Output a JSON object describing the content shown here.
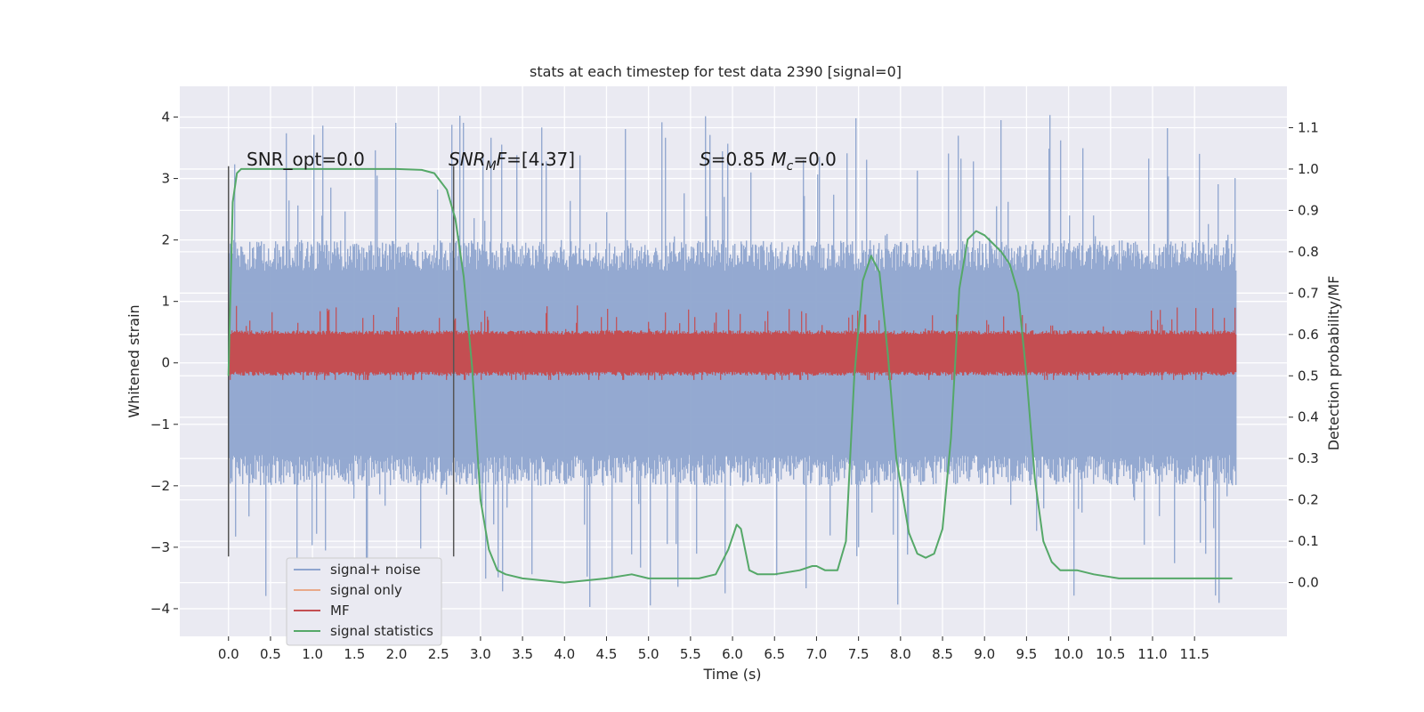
{
  "chart_data": {
    "type": "line",
    "title": "stats at each timestep for test data 2390 [signal=0]",
    "xlabel": "Time (s)",
    "ylabel": "Whitened strain",
    "ylabel_right": "Detection probability/MF",
    "xlim": [
      -0.58,
      12.6
    ],
    "ylim": [
      -4.45,
      4.5
    ],
    "ylim_right": [
      -0.13,
      1.2
    ],
    "x_ticks": [
      0.0,
      0.5,
      1.0,
      1.5,
      2.0,
      2.5,
      3.0,
      3.5,
      4.0,
      4.5,
      5.0,
      5.5,
      6.0,
      6.5,
      7.0,
      7.5,
      8.0,
      8.5,
      9.0,
      9.5,
      10.0,
      10.5,
      11.0,
      11.5
    ],
    "x_tick_labels": [
      "0.0",
      "0.5",
      "1.0",
      "1.5",
      "2.0",
      "2.5",
      "3.0",
      "3.5",
      "4.0",
      "4.5",
      "5.0",
      "5.5",
      "6.0",
      "6.5",
      "7.0",
      "7.5",
      "8.0",
      "8.5",
      "9.0",
      "9.5",
      "10.0",
      "10.5",
      "11.0",
      "11.5"
    ],
    "y_ticks": [
      -4,
      -3,
      -2,
      -1,
      0,
      1,
      2,
      3,
      4
    ],
    "y_tick_labels": [
      "−4",
      "−3",
      "−2",
      "−1",
      "0",
      "1",
      "2",
      "3",
      "4"
    ],
    "y_right_ticks": [
      0.0,
      0.1,
      0.2,
      0.3,
      0.4,
      0.5,
      0.6,
      0.7,
      0.8,
      0.9,
      1.0,
      1.1
    ],
    "y_right_tick_labels": [
      "0.0",
      "0.1",
      "0.2",
      "0.3",
      "0.4",
      "0.5",
      "0.6",
      "0.7",
      "0.8",
      "0.9",
      "1.0",
      "1.1"
    ],
    "grid": true,
    "legend_position": "lower-left",
    "series": [
      {
        "name": "signal+ noise",
        "color": "#8fa5cf",
        "axis": "left",
        "kind": "noise band",
        "x_range": [
          0.0,
          12.0
        ],
        "typical_envelope": [
          -2.0,
          2.0
        ],
        "min": -4.0,
        "max": 4.1
      },
      {
        "name": "signal only",
        "color": "#e9a98a",
        "axis": "left",
        "values": []
      },
      {
        "name": "MF",
        "color": "#c44e52",
        "axis": "right",
        "kind": "noise band",
        "x_range": [
          0.0,
          12.0
        ],
        "typical_envelope": [
          0.5,
          0.6
        ],
        "min": 0.49,
        "max": 0.67
      },
      {
        "name": "signal statistics",
        "color": "#55a868",
        "axis": "right",
        "x": [
          0.0,
          0.05,
          0.1,
          0.15,
          0.25,
          0.5,
          1.0,
          1.5,
          2.0,
          2.3,
          2.45,
          2.6,
          2.7,
          2.8,
          2.9,
          3.0,
          3.1,
          3.2,
          3.3,
          3.5,
          4.0,
          4.5,
          4.8,
          5.0,
          5.3,
          5.6,
          5.8,
          5.95,
          6.05,
          6.1,
          6.15,
          6.2,
          6.3,
          6.5,
          6.8,
          6.95,
          7.0,
          7.1,
          7.25,
          7.35,
          7.45,
          7.55,
          7.65,
          7.75,
          7.85,
          7.95,
          8.1,
          8.2,
          8.3,
          8.4,
          8.5,
          8.6,
          8.7,
          8.8,
          8.9,
          9.0,
          9.1,
          9.2,
          9.3,
          9.4,
          9.5,
          9.6,
          9.7,
          9.8,
          9.9,
          10.0,
          10.1,
          10.3,
          10.6,
          11.0,
          11.5,
          11.95
        ],
        "values": [
          0.5,
          0.92,
          0.99,
          1.0,
          1.0,
          1.0,
          1.0,
          1.0,
          1.0,
          0.998,
          0.99,
          0.95,
          0.88,
          0.74,
          0.52,
          0.2,
          0.08,
          0.03,
          0.02,
          0.01,
          0.0,
          0.01,
          0.02,
          0.01,
          0.01,
          0.01,
          0.02,
          0.08,
          0.14,
          0.13,
          0.08,
          0.03,
          0.02,
          0.02,
          0.03,
          0.04,
          0.04,
          0.03,
          0.03,
          0.1,
          0.5,
          0.73,
          0.79,
          0.75,
          0.55,
          0.3,
          0.12,
          0.07,
          0.06,
          0.07,
          0.13,
          0.35,
          0.71,
          0.83,
          0.85,
          0.84,
          0.82,
          0.8,
          0.77,
          0.7,
          0.5,
          0.25,
          0.1,
          0.05,
          0.03,
          0.03,
          0.03,
          0.02,
          0.01,
          0.01,
          0.01,
          0.01
        ]
      }
    ],
    "vertical_markers": [
      {
        "x": 0.0,
        "y_range": [
          -3.15,
          3.2
        ],
        "color": "#555555"
      },
      {
        "x": 2.68,
        "y_range": [
          -3.15,
          3.2
        ],
        "color": "#555555"
      }
    ],
    "annotations": [
      {
        "text": "SNR_opt=0.0",
        "x": 0.2,
        "y": 3.2
      },
      {
        "text": "SNR_MF=[4.37]",
        "x": 2.6,
        "y": 3.2
      },
      {
        "text": "S=0.85   M_c=0.0",
        "x": 5.6,
        "y": 3.2
      }
    ]
  }
}
